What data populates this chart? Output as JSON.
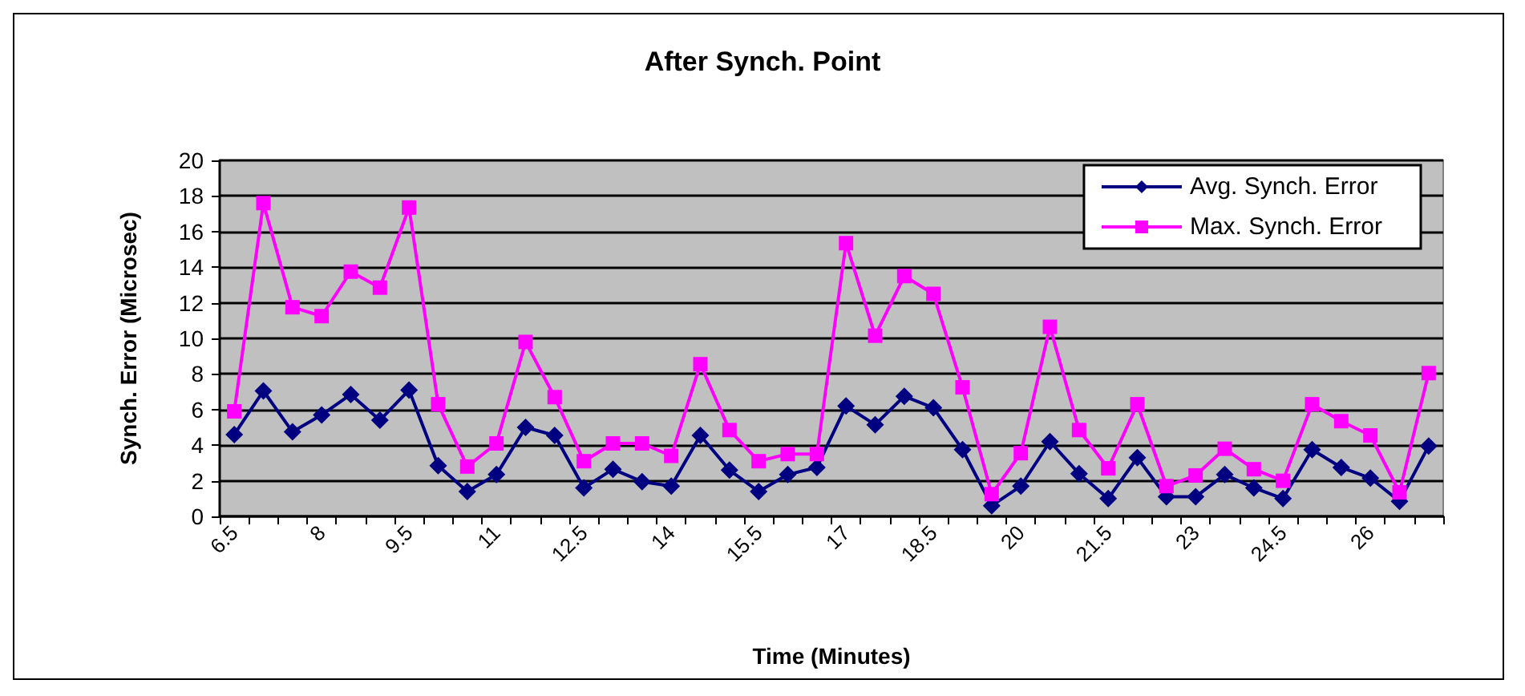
{
  "chart_data": {
    "type": "line",
    "title": "After Synch. Point",
    "xlabel": "Time (Minutes)",
    "ylabel": "Synch. Error (Microsec)",
    "categories": [
      "6.5",
      null,
      null,
      "8",
      null,
      null,
      "9.5",
      null,
      null,
      "11",
      null,
      null,
      "12.5",
      null,
      null,
      "14",
      null,
      null,
      "15.5",
      null,
      null,
      "17",
      null,
      null,
      "18.5",
      null,
      null,
      "20",
      null,
      null,
      "21.5",
      null,
      null,
      "23",
      null,
      null,
      "24.5",
      null,
      null,
      "26",
      null,
      null
    ],
    "series": [
      {
        "name": "Avg. Synch. Error",
        "color": "#000080",
        "marker": "diamond",
        "values": [
          4.6,
          7.05,
          4.75,
          5.7,
          6.85,
          5.4,
          7.1,
          2.85,
          1.4,
          2.35,
          5.0,
          4.55,
          1.6,
          2.65,
          1.95,
          1.7,
          4.55,
          2.6,
          1.4,
          2.35,
          2.75,
          6.2,
          5.15,
          6.75,
          6.1,
          3.75,
          0.6,
          1.7,
          4.2,
          2.4,
          1.0,
          3.3,
          1.1,
          1.1,
          2.35,
          1.6,
          1.0,
          3.75,
          2.75,
          2.15,
          0.85,
          3.95
        ]
      },
      {
        "name": "Max. Synch. Error",
        "color": "#ff00ff",
        "marker": "square",
        "values": [
          5.9,
          17.6,
          11.75,
          11.25,
          13.75,
          12.85,
          17.35,
          6.3,
          2.8,
          4.1,
          9.8,
          6.7,
          3.1,
          4.1,
          4.1,
          3.4,
          8.55,
          4.85,
          3.1,
          3.5,
          3.5,
          15.35,
          10.15,
          13.5,
          12.5,
          7.25,
          1.25,
          3.55,
          10.65,
          4.85,
          2.7,
          6.3,
          1.7,
          2.3,
          3.8,
          2.65,
          2.0,
          6.3,
          5.35,
          4.55,
          1.35,
          8.05
        ]
      }
    ],
    "ylim": [
      0,
      20
    ],
    "yticks": [
      0,
      2,
      4,
      6,
      8,
      10,
      12,
      14,
      16,
      18,
      20
    ],
    "grid": "y",
    "legend": "top right",
    "line_style": "solid"
  }
}
